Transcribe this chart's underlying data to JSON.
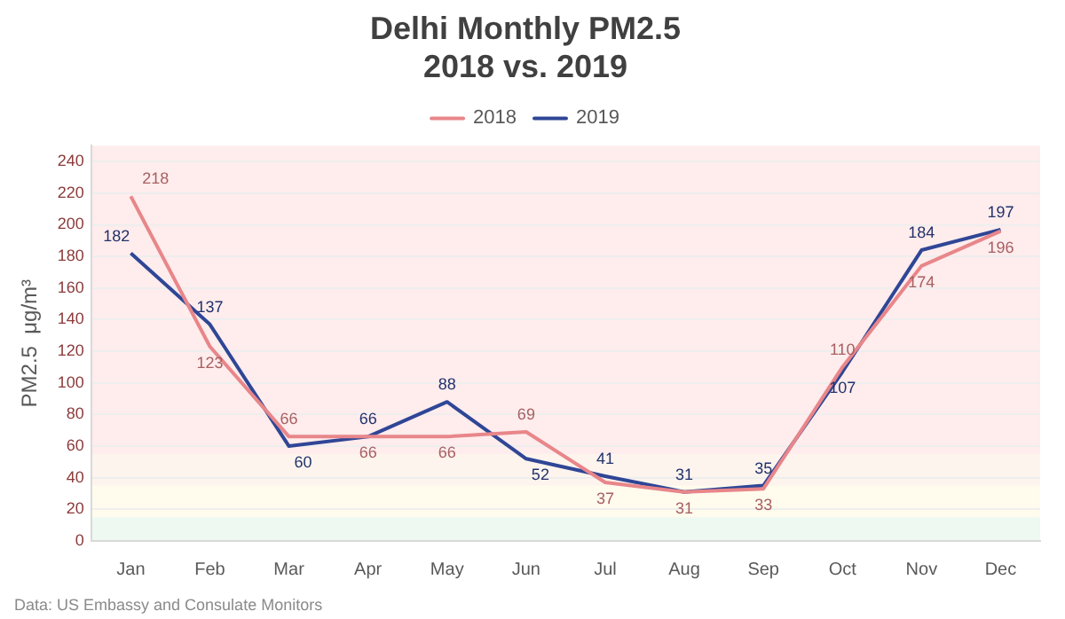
{
  "chart_data": {
    "type": "line",
    "title": "Delhi Monthly PM2.5",
    "subtitle": "2018 vs. 2019",
    "ylabel": "PM2.5  μg/m³",
    "categories": [
      "Jan",
      "Feb",
      "Mar",
      "Apr",
      "May",
      "Jun",
      "Jul",
      "Aug",
      "Sep",
      "Oct",
      "Nov",
      "Dec"
    ],
    "series": [
      {
        "name": "2018",
        "color": "#e8868a",
        "values": [
          218,
          123,
          66,
          66,
          66,
          69,
          37,
          31,
          33,
          110,
          174,
          196
        ]
      },
      {
        "name": "2019",
        "color": "#2f4696",
        "values": [
          182,
          137,
          60,
          66,
          88,
          52,
          41,
          31,
          35,
          107,
          184,
          197
        ]
      }
    ],
    "ylim": [
      0,
      250
    ],
    "yticks": [
      0,
      20,
      40,
      60,
      80,
      100,
      120,
      140,
      160,
      180,
      200,
      220,
      240
    ],
    "grid": "y",
    "legend": "top",
    "marker": "none",
    "line_style": "solid",
    "data_labels": true,
    "bands": [
      {
        "axis": "y",
        "from": 0,
        "to": 15,
        "color": "#4dc47a"
      },
      {
        "axis": "y",
        "from": 15,
        "to": 35,
        "color": "#fdd54c"
      },
      {
        "axis": "y",
        "from": 35,
        "to": 55,
        "color": "#ea9650"
      },
      {
        "axis": "y",
        "from": 55,
        "to": 250,
        "color": "#fd4141"
      }
    ],
    "annotations": [
      "Data: US Embassy and Consulate Monitors"
    ]
  }
}
